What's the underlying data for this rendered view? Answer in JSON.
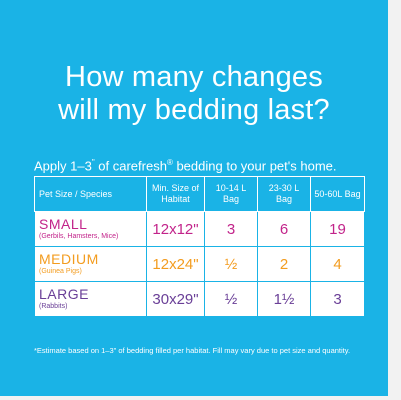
{
  "title_lines": [
    "How many changes",
    "will my bedding last?"
  ],
  "subtitle": {
    "prefix": "Apply 1–3",
    "quote": "\"",
    "rest": " of carefresh",
    "reg": "®",
    "suffix": " bedding to your pet's home."
  },
  "table": {
    "headers": [
      "Pet Size / Species",
      "Min. Size of Habitat",
      "10-14 L Bag",
      "23-30 L Bag",
      "50-60L Bag"
    ],
    "rows": [
      {
        "size": "SMALL",
        "species": "(Gerbils, Hamsters, Mice)",
        "habitat": "12x12\"",
        "bag_10_14": "3",
        "bag_23_30": "6",
        "bag_50_60": "19"
      },
      {
        "size": "MEDIUM",
        "species": "(Guinea Pigs)",
        "habitat": "12x24\"",
        "bag_10_14": "½",
        "bag_23_30": "2",
        "bag_50_60": "4"
      },
      {
        "size": "LARGE",
        "species": "(Rabbits)",
        "habitat": "30x29\"",
        "bag_10_14": "½",
        "bag_23_30": "1½",
        "bag_50_60": "3"
      }
    ]
  },
  "footnote": "*Estimate based on 1–3\" of bedding filled per habitat. Fill may vary due to pet size and quantity.",
  "colors": {
    "background": "#1ab3e6",
    "small": "#c2238a",
    "medium": "#f39c1f",
    "large": "#6a3f97"
  }
}
